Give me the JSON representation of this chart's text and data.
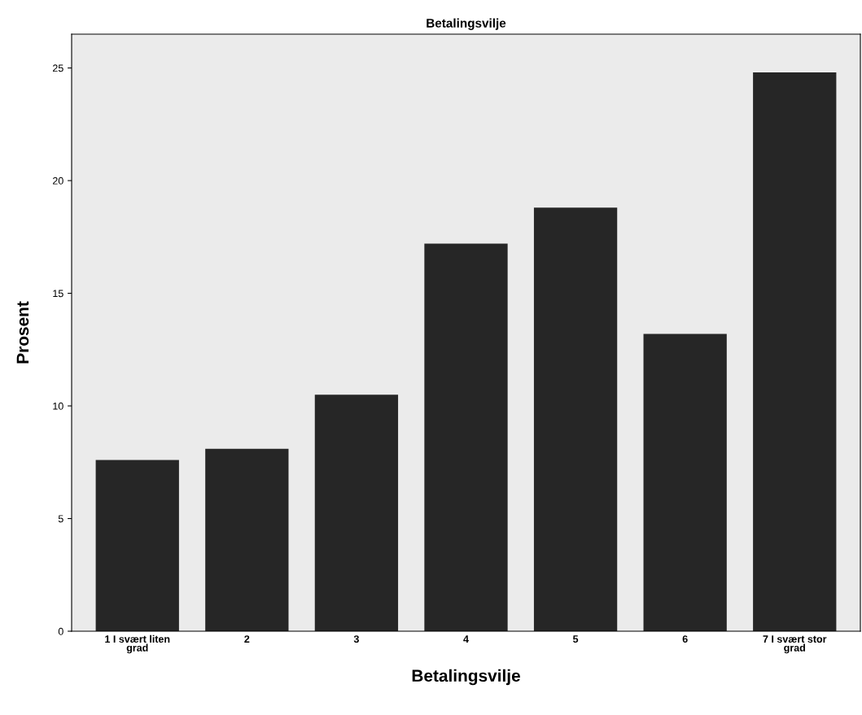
{
  "chart_data": {
    "type": "bar",
    "title": "Betalingsvilje",
    "xlabel": "Betalingsvilje",
    "ylabel": "Prosent",
    "categories": [
      "1 I svært liten\ngrad",
      "2",
      "3",
      "4",
      "5",
      "6",
      "7 I svært stor\ngrad"
    ],
    "values": [
      7.6,
      8.1,
      10.5,
      17.2,
      18.8,
      13.2,
      24.8
    ],
    "color": "#262626",
    "ylim": [
      0,
      26.5
    ],
    "yticks": [
      0,
      5,
      10,
      15,
      20,
      25
    ],
    "grid": false
  }
}
